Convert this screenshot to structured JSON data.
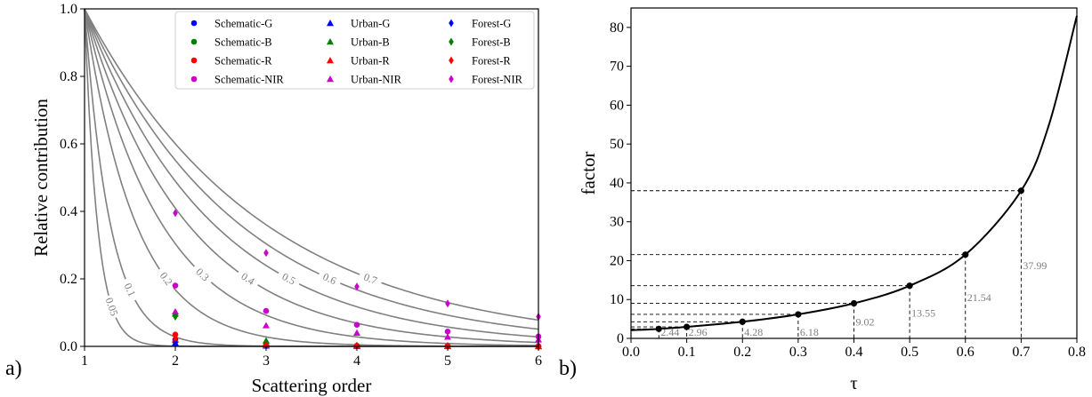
{
  "chart_data": [
    {
      "type": "line",
      "panel_label": "a)",
      "xlabel": "Scattering order",
      "ylabel": "Relative contribution",
      "xlim": [
        1,
        6
      ],
      "ylim": [
        0,
        1.0
      ],
      "xticks": [
        "1",
        "2",
        "3",
        "4",
        "5",
        "6"
      ],
      "yticks": [
        "0.0",
        "0.2",
        "0.4",
        "0.6",
        "0.8",
        "1.0"
      ],
      "grid": false,
      "legend_position": "top-right",
      "contours": [
        {
          "label": "0.05",
          "tau": 0.05,
          "label_x": 1.3
        },
        {
          "label": "0.1",
          "tau": 0.1,
          "label_x": 1.5
        },
        {
          "label": "0.2",
          "tau": 0.2,
          "label_x": 1.9
        },
        {
          "label": "0.3",
          "tau": 0.3,
          "label_x": 2.3
        },
        {
          "label": "0.4",
          "tau": 0.4,
          "label_x": 2.8
        },
        {
          "label": "0.5",
          "tau": 0.5,
          "label_x": 3.25
        },
        {
          "label": "0.6",
          "tau": 0.6,
          "label_x": 3.7
        },
        {
          "label": "0.7",
          "tau": 0.7,
          "label_x": 4.15
        }
      ],
      "series": [
        {
          "name": "Schematic-G",
          "marker": "circle",
          "color": "#0000ff",
          "points": [
            [
              2,
              0.02
            ],
            [
              3,
              0.003
            ],
            [
              4,
              0.001
            ],
            [
              5,
              0.0005
            ],
            [
              6,
              0.0002
            ]
          ]
        },
        {
          "name": "Schematic-B",
          "marker": "circle",
          "color": "#008000",
          "points": [
            [
              2,
              0.014
            ],
            [
              3,
              0.002
            ],
            [
              4,
              0.0008
            ],
            [
              5,
              0.0004
            ],
            [
              6,
              0.0002
            ]
          ]
        },
        {
          "name": "Schematic-R",
          "marker": "circle",
          "color": "#ff0000",
          "points": [
            [
              2,
              0.035
            ],
            [
              3,
              0.006
            ],
            [
              4,
              0.002
            ],
            [
              5,
              0.001
            ],
            [
              6,
              0.0005
            ]
          ]
        },
        {
          "name": "Schematic-NIR",
          "marker": "circle",
          "color": "#cc00cc",
          "points": [
            [
              2,
              0.18
            ],
            [
              3,
              0.105
            ],
            [
              4,
              0.064
            ],
            [
              5,
              0.044
            ],
            [
              6,
              0.029
            ]
          ]
        },
        {
          "name": "Urban-G",
          "marker": "triangle",
          "color": "#0000ff",
          "points": [
            [
              2,
              0.01
            ],
            [
              3,
              0.002
            ],
            [
              4,
              0.001
            ],
            [
              5,
              0.0005
            ],
            [
              6,
              0.0002
            ]
          ]
        },
        {
          "name": "Urban-B",
          "marker": "triangle",
          "color": "#008000",
          "points": [
            [
              2,
              0.097
            ],
            [
              3,
              0.017
            ],
            [
              4,
              0.003
            ],
            [
              5,
              0.001
            ],
            [
              6,
              0.0005
            ]
          ]
        },
        {
          "name": "Urban-R",
          "marker": "triangle",
          "color": "#ff0000",
          "points": [
            [
              2,
              0.02
            ],
            [
              3,
              0.003
            ],
            [
              4,
              0.001
            ],
            [
              5,
              0.0005
            ],
            [
              6,
              0.0002
            ]
          ]
        },
        {
          "name": "Urban-NIR",
          "marker": "triangle",
          "color": "#cc00cc",
          "points": [
            [
              2,
              0.103
            ],
            [
              3,
              0.062
            ],
            [
              4,
              0.04
            ],
            [
              5,
              0.028
            ],
            [
              6,
              0.02
            ]
          ]
        },
        {
          "name": "Forest-G",
          "marker": "diamond",
          "color": "#0000ff",
          "points": [
            [
              2,
              0.012
            ],
            [
              3,
              0.002
            ],
            [
              4,
              0.001
            ],
            [
              5,
              0.0005
            ],
            [
              6,
              0.0002
            ]
          ]
        },
        {
          "name": "Forest-B",
          "marker": "diamond",
          "color": "#008000",
          "points": [
            [
              2,
              0.088
            ],
            [
              3,
              0.012
            ],
            [
              4,
              0.002
            ],
            [
              5,
              0.001
            ],
            [
              6,
              0.0005
            ]
          ]
        },
        {
          "name": "Forest-R",
          "marker": "diamond",
          "color": "#ff0000",
          "points": [
            [
              2,
              0.025
            ],
            [
              3,
              0.004
            ],
            [
              4,
              0.001
            ],
            [
              5,
              0.0005
            ],
            [
              6,
              0.0002
            ]
          ]
        },
        {
          "name": "Forest-NIR",
          "marker": "diamond",
          "color": "#cc00cc",
          "points": [
            [
              2,
              0.395
            ],
            [
              3,
              0.277
            ],
            [
              4,
              0.177
            ],
            [
              5,
              0.127
            ],
            [
              6,
              0.088
            ]
          ]
        }
      ]
    },
    {
      "type": "line",
      "panel_label": "b)",
      "xlabel": "τ",
      "ylabel": "factor",
      "xlim": [
        0.0,
        0.8
      ],
      "ylim": [
        0,
        85
      ],
      "xticks": [
        "0.0",
        "0.1",
        "0.2",
        "0.3",
        "0.4",
        "0.5",
        "0.6",
        "0.7",
        "0.8"
      ],
      "yticks": [
        "0",
        "10",
        "20",
        "30",
        "40",
        "50",
        "60",
        "70",
        "80"
      ],
      "grid": false,
      "curve_color": "#000000",
      "points": [
        {
          "x": 0.05,
          "y": 2.44,
          "label": "2.44"
        },
        {
          "x": 0.1,
          "y": 2.96,
          "label": "2.96"
        },
        {
          "x": 0.2,
          "y": 4.28,
          "label": "4.28"
        },
        {
          "x": 0.3,
          "y": 6.18,
          "label": "6.18"
        },
        {
          "x": 0.4,
          "y": 9.02,
          "label": "9.02"
        },
        {
          "x": 0.5,
          "y": 13.55,
          "label": "13.55"
        },
        {
          "x": 0.6,
          "y": 21.54,
          "label": "21.54"
        },
        {
          "x": 0.7,
          "y": 37.99,
          "label": "37.99"
        }
      ]
    }
  ]
}
